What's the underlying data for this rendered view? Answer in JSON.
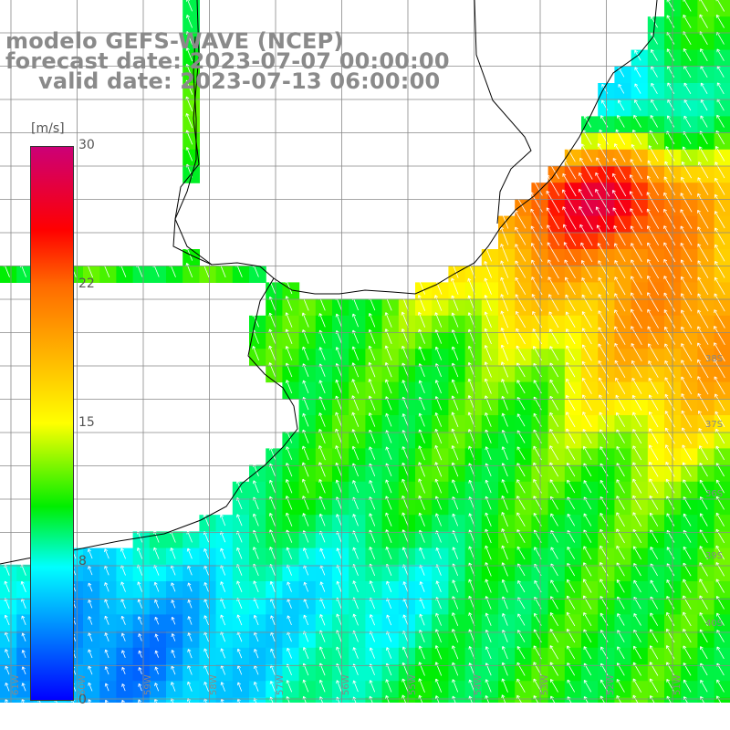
{
  "title": {
    "line1": "modelo GEFS-WAVE (NCEP)",
    "line2": "forecast date: 2023-07-07 00:00:00",
    "line3": "valid date: 2023-07-13 06:00:00"
  },
  "colorbar": {
    "unit": "[m/s]",
    "ticks": [
      "30",
      "22",
      "15",
      "8",
      "0"
    ],
    "colors": [
      "#cc0077",
      "#ff0000",
      "#ff6a00",
      "#ffa500",
      "#ffff00",
      "#00ee00",
      "#00ffff",
      "#0000ff"
    ]
  },
  "lon_labels": [
    "61W",
    "60W",
    "59W",
    "58W",
    "57W",
    "56W",
    "55W",
    "54W",
    "53W",
    "52W",
    "51W"
  ],
  "lat_labels": [
    "36S",
    "37S",
    "38S",
    "39S",
    "40S"
  ],
  "colors": {
    "grid": "#888888",
    "coast": "#000000",
    "arrow": "#ffffff"
  }
}
